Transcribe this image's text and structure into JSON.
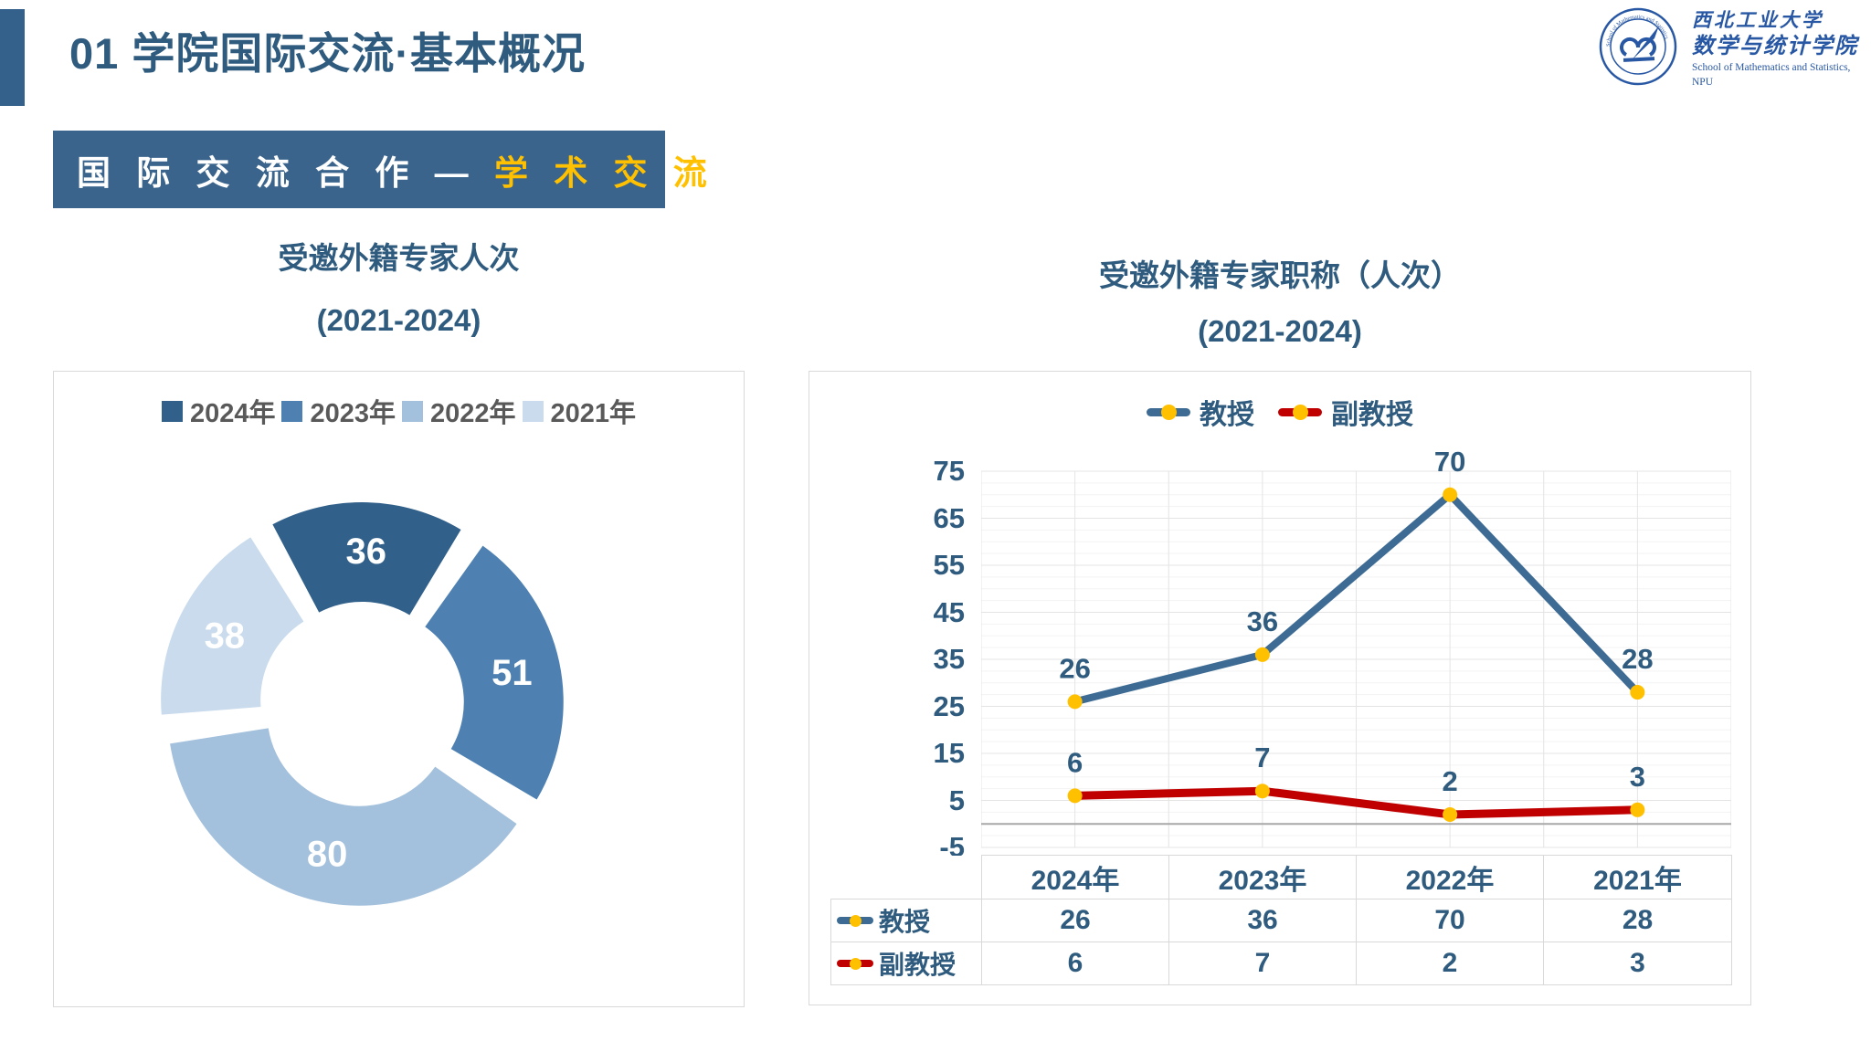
{
  "header": {
    "title": "01 学院国际交流·基本概况",
    "logo": {
      "university_name": "西北工业大学",
      "school_name": "数学与统计学院",
      "school_name_en": "School of Mathematics and Statistics, NPU"
    }
  },
  "banner": {
    "left_text": "国 际 交 流 合 作 — ",
    "highlight_text": "学 术 交 流"
  },
  "left_chart": {
    "title_line1": "受邀外籍专家人次",
    "title_line2": "(2021-2024)"
  },
  "right_chart": {
    "title_line1": "受邀外籍专家职称（人次）",
    "title_line2": "(2021-2024)"
  },
  "colors": {
    "accent_blue": "#2F5B7E",
    "banner_bg": "#3A648C",
    "highlight_yellow": "#FFC000",
    "legend_gray": "#595959",
    "panel_border": "#D9D9D9",
    "grid_minor": "#F3F3F3",
    "grid_major": "#E4E4E4",
    "zero_axis": "#A8A8A8",
    "logo_blue": "#2857A4"
  },
  "chart_data": [
    {
      "type": "pie",
      "variant": "doughnut-exploded",
      "title": "受邀外籍专家人次 (2021-2024)",
      "categories": [
        "2024年",
        "2023年",
        "2022年",
        "2021年"
      ],
      "values": [
        36,
        51,
        80,
        38
      ],
      "colors": [
        "#31608A",
        "#4E81B1",
        "#A3C0DC",
        "#C9DBEC"
      ],
      "label_color": "#FFFFFF",
      "legend_position": "top",
      "start_angle_deg": -30,
      "direction": "clockwise"
    },
    {
      "type": "line",
      "title": "受邀外籍专家职称（人次） (2021-2024)",
      "categories": [
        "2024年",
        "2023年",
        "2022年",
        "2021年"
      ],
      "series": [
        {
          "name": "教授",
          "values": [
            26,
            36,
            70,
            28
          ],
          "color": "#3D6B94"
        },
        {
          "name": "副教授",
          "values": [
            6,
            7,
            2,
            3
          ],
          "color": "#C00000"
        }
      ],
      "marker_color": "#FFC000",
      "label_color": "#2F5B7E",
      "ylim": [
        -5,
        75
      ],
      "ytick_step": 10,
      "yticks": [
        75,
        65,
        55,
        45,
        35,
        25,
        15,
        5,
        -5
      ],
      "grid": true,
      "legend_position": "top",
      "data_table": true
    }
  ]
}
